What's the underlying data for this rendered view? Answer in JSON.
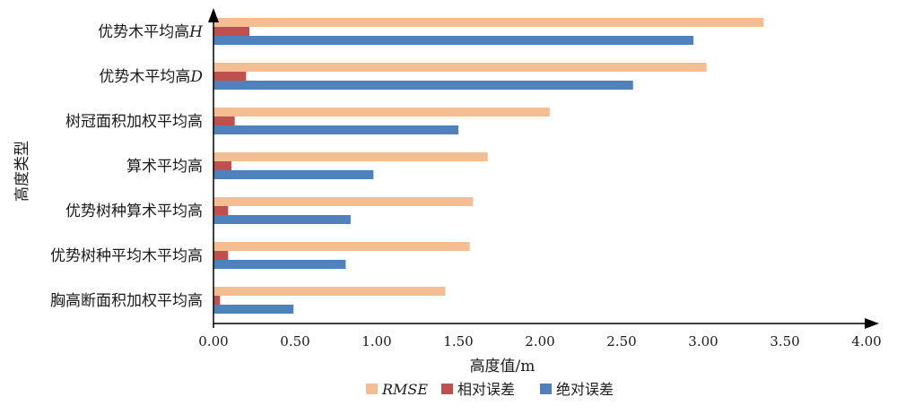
{
  "chart_data": {
    "type": "bar",
    "orientation": "horizontal",
    "categories": [
      {
        "text": "优势木平均高",
        "var": "H"
      },
      {
        "text": "优势木平均高",
        "var": "D"
      },
      {
        "text": "树冠面积加权平均高",
        "var": ""
      },
      {
        "text": "算术平均高",
        "var": ""
      },
      {
        "text": "优势树种算术平均高",
        "var": ""
      },
      {
        "text": "优势树种平均木平均高",
        "var": ""
      },
      {
        "text": "胸高断面积加权平均高",
        "var": ""
      }
    ],
    "series": [
      {
        "name": "RMSE",
        "color": "#F5BE92",
        "italic": true,
        "values": [
          3.37,
          3.02,
          2.06,
          1.68,
          1.59,
          1.57,
          1.42
        ]
      },
      {
        "name": "相对误差",
        "color": "#C0504D",
        "italic": false,
        "values": [
          0.22,
          0.2,
          0.13,
          0.11,
          0.09,
          0.09,
          0.04
        ]
      },
      {
        "name": "绝对误差",
        "color": "#4F81BD",
        "italic": false,
        "values": [
          2.94,
          2.57,
          1.5,
          0.98,
          0.84,
          0.81,
          0.49
        ]
      }
    ],
    "xlim": [
      0,
      4
    ],
    "xticks": [
      "0.00",
      "0.50",
      "1.00",
      "1.50",
      "2.00",
      "2.50",
      "3.00",
      "3.50",
      "4.00"
    ],
    "xlabel": "高度值/m",
    "ylabel": "高度类型",
    "legend_position": "bottom"
  }
}
